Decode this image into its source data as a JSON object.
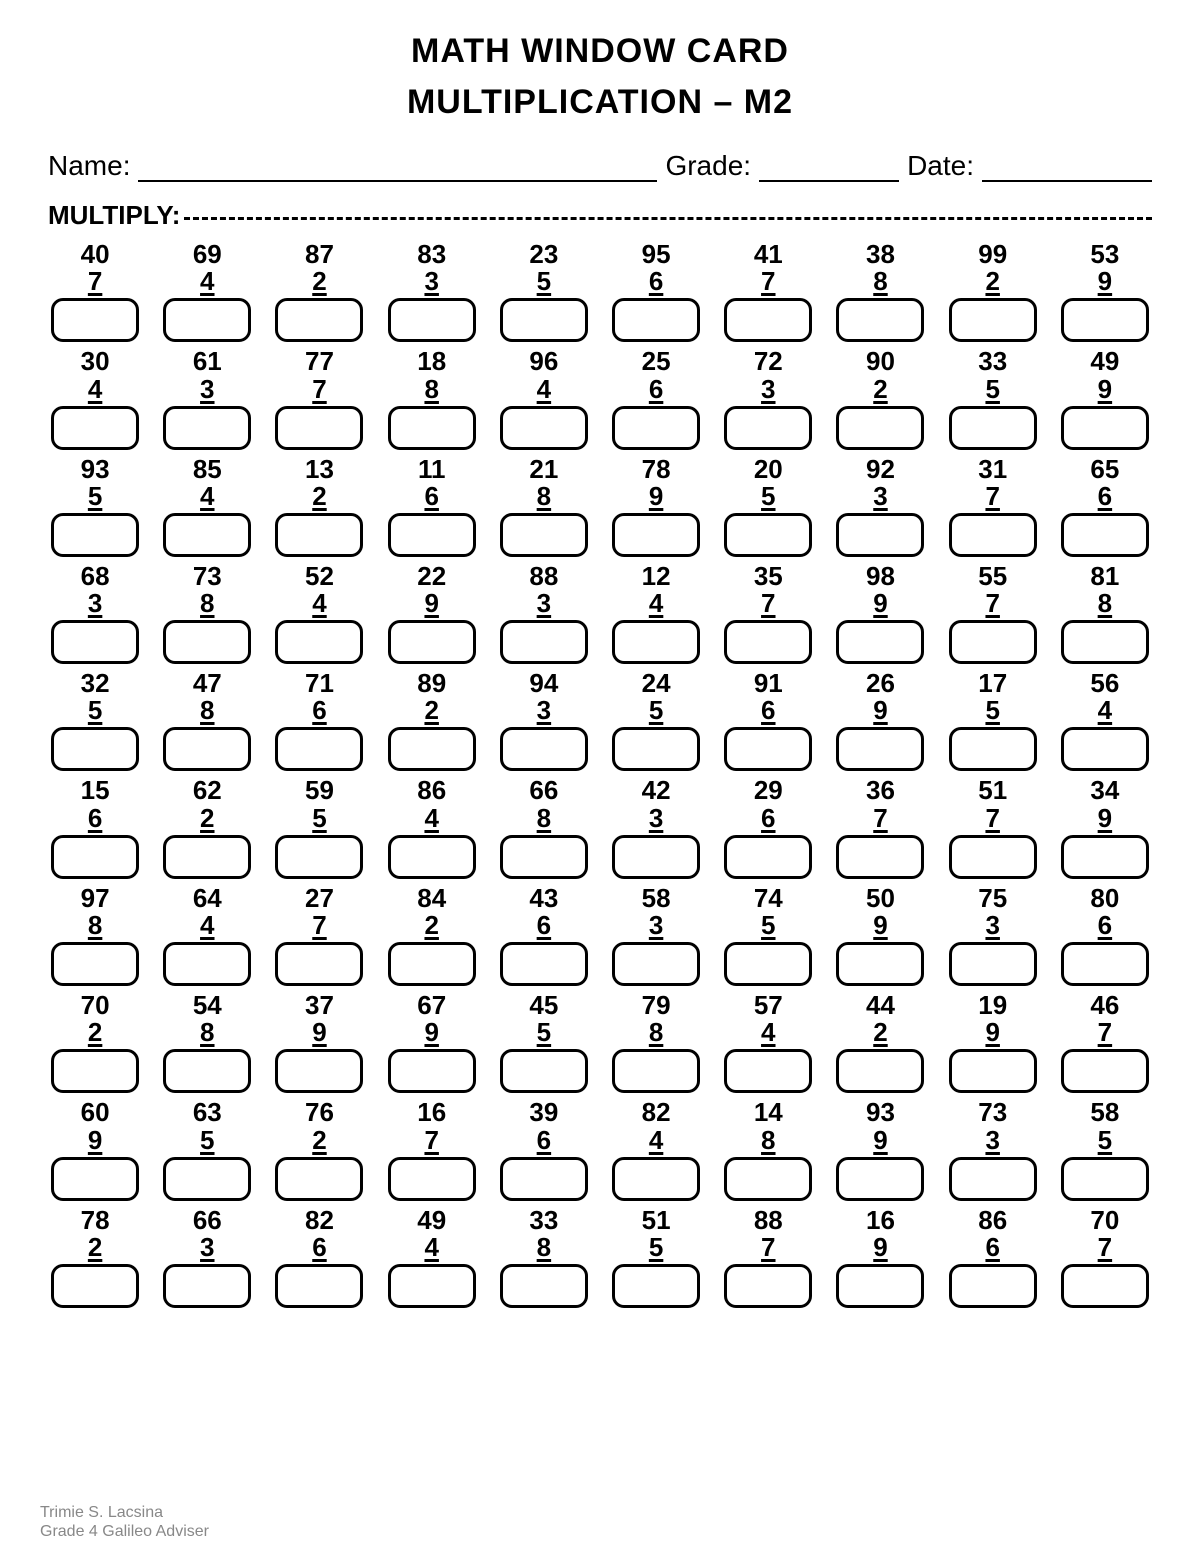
{
  "title": "MATH WINDOW CARD",
  "subtitle": "MULTIPLICATION – M2",
  "labels": {
    "name": "Name:",
    "grade": "Grade:",
    "date": "Date:",
    "instruction": "MULTIPLY:"
  },
  "footer": {
    "line1": "Trimie S. Lacsina",
    "line2": "Grade 4 Galileo Adviser"
  },
  "style": {
    "background_color": "#ffffff",
    "text_color": "#000000",
    "border_color": "#000000",
    "title_fontsize": 34,
    "num_fontsize": 26,
    "box_border_radius": 12,
    "box_border_width": 3,
    "columns": 10,
    "rows": 10
  },
  "problems": [
    [
      [
        40,
        7
      ],
      [
        69,
        4
      ],
      [
        87,
        2
      ],
      [
        83,
        3
      ],
      [
        23,
        5
      ],
      [
        95,
        6
      ],
      [
        41,
        7
      ],
      [
        38,
        8
      ],
      [
        99,
        2
      ],
      [
        53,
        9
      ]
    ],
    [
      [
        30,
        4
      ],
      [
        61,
        3
      ],
      [
        77,
        7
      ],
      [
        18,
        8
      ],
      [
        96,
        4
      ],
      [
        25,
        6
      ],
      [
        72,
        3
      ],
      [
        90,
        2
      ],
      [
        33,
        5
      ],
      [
        49,
        9
      ]
    ],
    [
      [
        93,
        5
      ],
      [
        85,
        4
      ],
      [
        13,
        2
      ],
      [
        11,
        6
      ],
      [
        21,
        8
      ],
      [
        78,
        9
      ],
      [
        20,
        5
      ],
      [
        92,
        3
      ],
      [
        31,
        7
      ],
      [
        65,
        6
      ]
    ],
    [
      [
        68,
        3
      ],
      [
        73,
        8
      ],
      [
        52,
        4
      ],
      [
        22,
        9
      ],
      [
        88,
        3
      ],
      [
        12,
        4
      ],
      [
        35,
        7
      ],
      [
        98,
        9
      ],
      [
        55,
        7
      ],
      [
        81,
        8
      ]
    ],
    [
      [
        32,
        5
      ],
      [
        47,
        8
      ],
      [
        71,
        6
      ],
      [
        89,
        2
      ],
      [
        94,
        3
      ],
      [
        24,
        5
      ],
      [
        91,
        6
      ],
      [
        26,
        9
      ],
      [
        17,
        5
      ],
      [
        56,
        4
      ]
    ],
    [
      [
        15,
        6
      ],
      [
        62,
        2
      ],
      [
        59,
        5
      ],
      [
        86,
        4
      ],
      [
        66,
        8
      ],
      [
        42,
        3
      ],
      [
        29,
        6
      ],
      [
        36,
        7
      ],
      [
        51,
        7
      ],
      [
        34,
        9
      ]
    ],
    [
      [
        97,
        8
      ],
      [
        64,
        4
      ],
      [
        27,
        7
      ],
      [
        84,
        2
      ],
      [
        43,
        6
      ],
      [
        58,
        3
      ],
      [
        74,
        5
      ],
      [
        50,
        9
      ],
      [
        75,
        3
      ],
      [
        80,
        6
      ]
    ],
    [
      [
        70,
        2
      ],
      [
        54,
        8
      ],
      [
        37,
        9
      ],
      [
        67,
        9
      ],
      [
        45,
        5
      ],
      [
        79,
        8
      ],
      [
        57,
        4
      ],
      [
        44,
        2
      ],
      [
        19,
        9
      ],
      [
        46,
        7
      ]
    ],
    [
      [
        60,
        9
      ],
      [
        63,
        5
      ],
      [
        76,
        2
      ],
      [
        16,
        7
      ],
      [
        39,
        6
      ],
      [
        82,
        4
      ],
      [
        14,
        8
      ],
      [
        93,
        9
      ],
      [
        73,
        3
      ],
      [
        58,
        5
      ]
    ],
    [
      [
        78,
        2
      ],
      [
        66,
        3
      ],
      [
        82,
        6
      ],
      [
        49,
        4
      ],
      [
        33,
        8
      ],
      [
        51,
        5
      ],
      [
        88,
        7
      ],
      [
        16,
        9
      ],
      [
        86,
        6
      ],
      [
        70,
        7
      ]
    ]
  ]
}
